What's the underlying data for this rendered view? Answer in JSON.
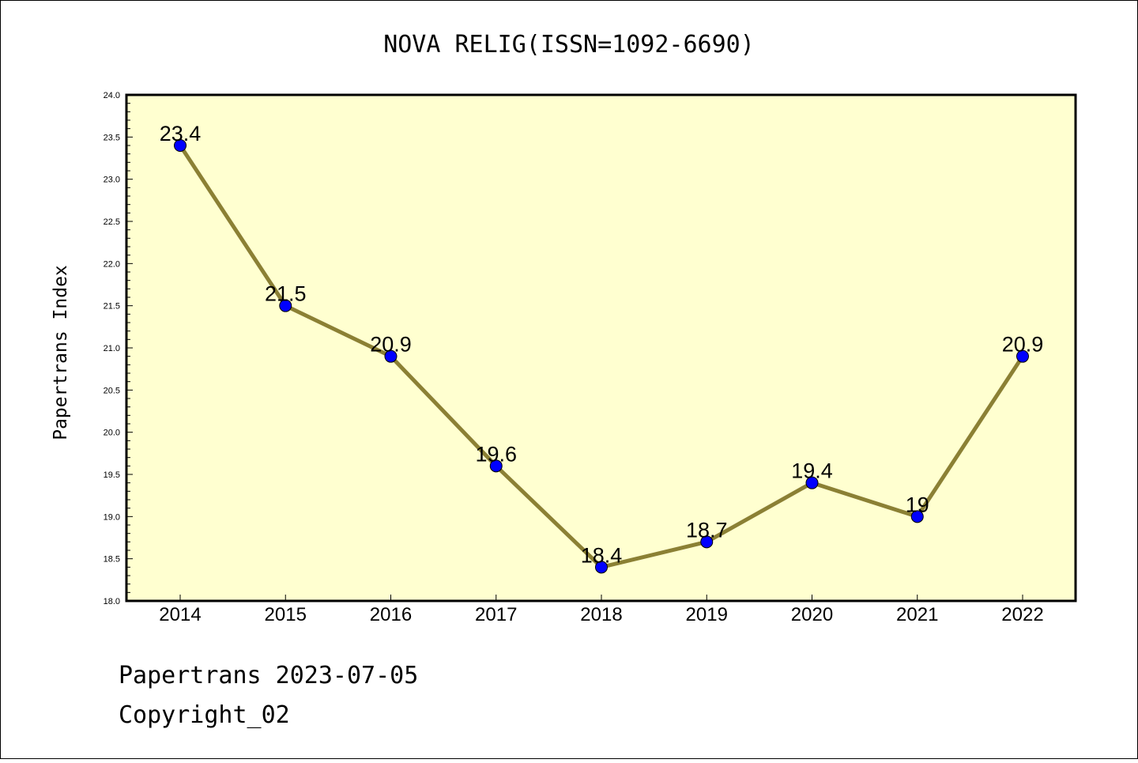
{
  "chart_data": {
    "type": "line",
    "title": "NOVA RELIG(ISSN=1092-6690)",
    "xlabel": "",
    "ylabel": "Papertrans Index",
    "categories": [
      "2014",
      "2015",
      "2016",
      "2017",
      "2018",
      "2019",
      "2020",
      "2021",
      "2022"
    ],
    "series": [
      {
        "values": [
          23.4,
          21.5,
          20.9,
          19.6,
          18.4,
          18.7,
          19.4,
          19.0,
          20.9
        ],
        "labels": [
          "23.4",
          "21.5",
          "20.9",
          "19.6",
          "18.4",
          "18.7",
          "19.4",
          "19",
          "20.9"
        ]
      }
    ],
    "ylim": [
      18.0,
      24.0
    ],
    "yticks": [
      "18.0",
      "18.5",
      "19.0",
      "19.5",
      "20.0",
      "20.5",
      "21.0",
      "21.5",
      "22.0",
      "22.5",
      "23.0",
      "23.5",
      "24.0"
    ],
    "grid": false,
    "colors": {
      "plot_background": "#ffffd0",
      "line": "#8b8034",
      "marker": "#0000ff"
    }
  },
  "footer": {
    "line1": "Papertrans 2023-07-05",
    "line2": "Copyright_02"
  }
}
